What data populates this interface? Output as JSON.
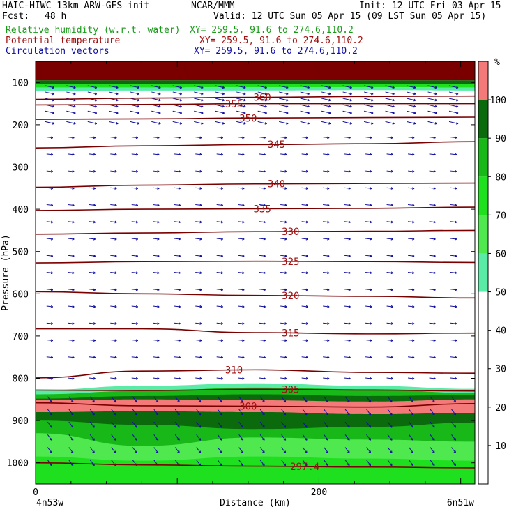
{
  "header": {
    "title": "HAIC-HIWC 13km ARW-GFS init",
    "center": "NCAR/MMM",
    "init": "Init: 12 UTC Fri 03 Apr 15",
    "fcst_label": "Fcst:",
    "fcst_value": "48 h",
    "valid": "Valid: 12 UTC Sun 05 Apr 15 (09 LST Sun 05 Apr 15)"
  },
  "fields": [
    {
      "name": "Relative humidity (w.r.t. water)",
      "xy": "XY= 259.5, 91.6 to 274.6,110.2",
      "color": "#1a9a1a"
    },
    {
      "name": "Potential temperature",
      "xy": "XY= 259.5, 91.6 to 274.6,110.2",
      "color": "#a01010"
    },
    {
      "name": "Circulation vectors",
      "xy": "XY= 259.5, 91.6 to 274.6,110.2",
      "color": "#1010a0"
    }
  ],
  "chart_data": {
    "type": "heatmap",
    "xlabel": "Distance (km)",
    "ylabel": "Pressure (hPa)",
    "x_ticks": [
      0,
      200
    ],
    "xlim": [
      0,
      310
    ],
    "y_ticks": [
      100,
      200,
      300,
      400,
      500,
      600,
      700,
      800,
      900,
      1000
    ],
    "ylim": [
      1050,
      50
    ],
    "left_endpoint": "4n53w",
    "right_endpoint": "6n51w",
    "colorbar": {
      "unit": "%",
      "ticks": [
        10,
        20,
        30,
        40,
        50,
        60,
        70,
        80,
        90,
        100
      ],
      "bands": [
        {
          "from": 50,
          "to": 60,
          "color": "#5aeba6"
        },
        {
          "from": 60,
          "to": 70,
          "color": "#4fe84f"
        },
        {
          "from": 70,
          "to": 80,
          "color": "#1fe01f"
        },
        {
          "from": 80,
          "to": 90,
          "color": "#17b817"
        },
        {
          "from": 90,
          "to": 100,
          "color": "#0b6a0b"
        },
        {
          "from": 100,
          "to": 110,
          "color": "#f47a7a"
        }
      ],
      "top_color": "#7a0000"
    },
    "theta_contours": [
      {
        "label": "360",
        "label_x": 160,
        "p": [
          140,
          137,
          135,
          133,
          132
        ]
      },
      {
        "label": "355",
        "label_x": 140,
        "p": [
          153,
          152,
          150,
          150,
          150
        ]
      },
      {
        "label": "350",
        "label_x": 150,
        "p": [
          187,
          186,
          184,
          183,
          182
        ]
      },
      {
        "label": "345",
        "label_x": 170,
        "p": [
          255,
          250,
          247,
          245,
          240
        ]
      },
      {
        "label": "340",
        "label_x": 170,
        "p": [
          348,
          343,
          340,
          339,
          338
        ]
      },
      {
        "label": "335",
        "label_x": 160,
        "p": [
          403,
          400,
          399,
          398,
          395
        ]
      },
      {
        "label": "330",
        "label_x": 180,
        "p": [
          459,
          456,
          453,
          452,
          450
        ]
      },
      {
        "label": "325",
        "label_x": 180,
        "p": [
          527,
          524,
          523,
          524,
          526
        ]
      },
      {
        "label": "320",
        "label_x": 180,
        "p": [
          595,
          600,
          604,
          606,
          610
        ]
      },
      {
        "label": "315",
        "label_x": 180,
        "p": [
          683,
          683,
          692,
          695,
          693
        ]
      },
      {
        "label": "310",
        "label_x": 140,
        "p": [
          799,
          783,
          780,
          786,
          788
        ]
      },
      {
        "label": "305",
        "label_x": 180,
        "p": [
          828,
          829,
          826,
          828,
          830
        ]
      },
      {
        "label": "300",
        "label_x": 150,
        "p": [
          858,
          865,
          866,
          868,
          860
        ]
      },
      {
        "label": "297.4",
        "label_x": 190,
        "p": [
          1000,
          1005,
          1008,
          1010,
          1012
        ]
      }
    ]
  }
}
